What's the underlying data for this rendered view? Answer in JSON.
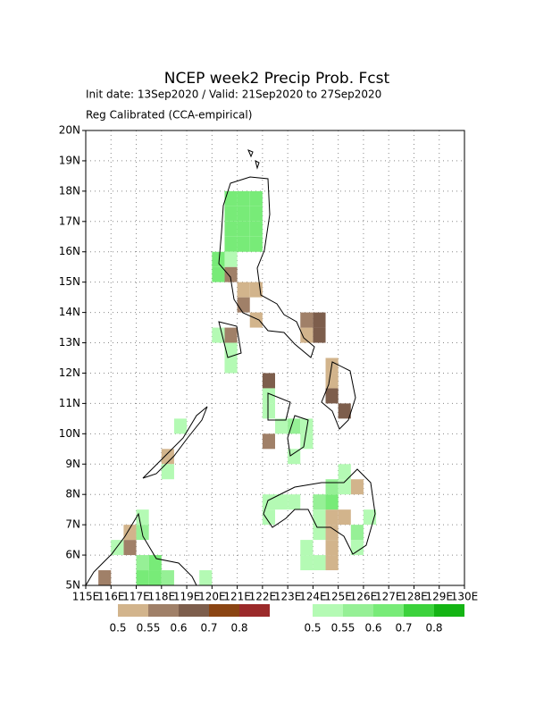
{
  "chart_data": {
    "type": "map",
    "title": "NCEP week2 Precip Prob. Fcst",
    "subtitle": [
      "Init date: 13Sep2020 / Valid: 21Sep2020 to 27Sep2020",
      "Reg Calibrated (CCA-empirical)"
    ],
    "xlim": [
      115,
      130
    ],
    "ylim": [
      5,
      20
    ],
    "xticks": [
      {
        "value": 115,
        "label": "115E"
      },
      {
        "value": 116,
        "label": "116E"
      },
      {
        "value": 117,
        "label": "117E"
      },
      {
        "value": 118,
        "label": "118E"
      },
      {
        "value": 119,
        "label": "119E"
      },
      {
        "value": 120,
        "label": "120E"
      },
      {
        "value": 121,
        "label": "121E"
      },
      {
        "value": 122,
        "label": "122E"
      },
      {
        "value": 123,
        "label": "123E"
      },
      {
        "value": 124,
        "label": "124E"
      },
      {
        "value": 125,
        "label": "125E"
      },
      {
        "value": 126,
        "label": "126E"
      },
      {
        "value": 127,
        "label": "127E"
      },
      {
        "value": 128,
        "label": "128E"
      },
      {
        "value": 129,
        "label": "129E"
      },
      {
        "value": 130,
        "label": "130E"
      }
    ],
    "yticks": [
      {
        "value": 5,
        "label": "5N"
      },
      {
        "value": 6,
        "label": "6N"
      },
      {
        "value": 7,
        "label": "7N"
      },
      {
        "value": 8,
        "label": "8N"
      },
      {
        "value": 9,
        "label": "9N"
      },
      {
        "value": 10,
        "label": "10N"
      },
      {
        "value": 11,
        "label": "11N"
      },
      {
        "value": 12,
        "label": "12N"
      },
      {
        "value": 13,
        "label": "13N"
      },
      {
        "value": 14,
        "label": "14N"
      },
      {
        "value": 15,
        "label": "15N"
      },
      {
        "value": 16,
        "label": "16N"
      },
      {
        "value": 17,
        "label": "17N"
      },
      {
        "value": 18,
        "label": "18N"
      },
      {
        "value": 19,
        "label": "19N"
      },
      {
        "value": 20,
        "label": "20N"
      }
    ],
    "grid": true,
    "series": [
      {
        "levels": [
          0.5,
          0.55,
          0.6,
          0.7,
          0.8
        ],
        "colors": [
          "#d2b48c",
          "#a08068",
          "#7d5e4c",
          "#8b4513",
          "#9b2a2a"
        ],
        "cells": [
          {
            "lon": 120.5,
            "lat": 15,
            "prob": 0.55
          },
          {
            "lon": 121,
            "lat": 14,
            "prob": 0.55
          },
          {
            "lon": 120.5,
            "lat": 13,
            "prob": 0.55
          },
          {
            "lon": 121,
            "lat": 14.5,
            "prob": 0.5
          },
          {
            "lon": 121.5,
            "lat": 13.5,
            "prob": 0.5
          },
          {
            "lon": 121.5,
            "lat": 14.5,
            "prob": 0.5
          },
          {
            "lon": 124,
            "lat": 13,
            "prob": 0.6
          },
          {
            "lon": 124,
            "lat": 13.5,
            "prob": 0.6
          },
          {
            "lon": 123.5,
            "lat": 13,
            "prob": 0.5
          },
          {
            "lon": 123.5,
            "lat": 13.5,
            "prob": 0.55
          },
          {
            "lon": 124.5,
            "lat": 11,
            "prob": 0.6
          },
          {
            "lon": 124.5,
            "lat": 11.5,
            "prob": 0.5
          },
          {
            "lon": 125,
            "lat": 10.5,
            "prob": 0.6
          },
          {
            "lon": 124.5,
            "lat": 12,
            "prob": 0.5
          },
          {
            "lon": 122,
            "lat": 11.5,
            "prob": 0.6
          },
          {
            "lon": 122,
            "lat": 9.5,
            "prob": 0.55
          },
          {
            "lon": 118,
            "lat": 9,
            "prob": 0.5
          },
          {
            "lon": 115.5,
            "lat": 5,
            "prob": 0.55
          },
          {
            "lon": 116.5,
            "lat": 6,
            "prob": 0.55
          },
          {
            "lon": 116.5,
            "lat": 6.5,
            "prob": 0.5
          },
          {
            "lon": 124.5,
            "lat": 5.5,
            "prob": 0.5
          },
          {
            "lon": 124.5,
            "lat": 6,
            "prob": 0.5
          },
          {
            "lon": 124.5,
            "lat": 6.5,
            "prob": 0.5
          },
          {
            "lon": 124.5,
            "lat": 7,
            "prob": 0.5
          },
          {
            "lon": 125,
            "lat": 7,
            "prob": 0.5
          },
          {
            "lon": 125.5,
            "lat": 8,
            "prob": 0.5
          }
        ]
      },
      {
        "levels": [
          0.5,
          0.55,
          0.6,
          0.7,
          0.8
        ],
        "colors": [
          "#b4fab4",
          "#96f096",
          "#78eb78",
          "#3cd23c",
          "#14b414"
        ],
        "cells": [
          {
            "lon": 120.5,
            "lat": 16,
            "prob": 0.6
          },
          {
            "lon": 121,
            "lat": 16,
            "prob": 0.6
          },
          {
            "lon": 121.5,
            "lat": 16,
            "prob": 0.6
          },
          {
            "lon": 120.5,
            "lat": 16.5,
            "prob": 0.6
          },
          {
            "lon": 121,
            "lat": 16.5,
            "prob": 0.6
          },
          {
            "lon": 121.5,
            "lat": 16.5,
            "prob": 0.6
          },
          {
            "lon": 120.5,
            "lat": 17,
            "prob": 0.6
          },
          {
            "lon": 121,
            "lat": 17,
            "prob": 0.6
          },
          {
            "lon": 121.5,
            "lat": 17,
            "prob": 0.6
          },
          {
            "lon": 120.5,
            "lat": 17.5,
            "prob": 0.6
          },
          {
            "lon": 121,
            "lat": 17.5,
            "prob": 0.6
          },
          {
            "lon": 121.5,
            "lat": 17.5,
            "prob": 0.6
          },
          {
            "lon": 120,
            "lat": 15,
            "prob": 0.6
          },
          {
            "lon": 120,
            "lat": 15.5,
            "prob": 0.6
          },
          {
            "lon": 120.5,
            "lat": 15.5,
            "prob": 0.5
          },
          {
            "lon": 120,
            "lat": 13,
            "prob": 0.5
          },
          {
            "lon": 120.5,
            "lat": 12,
            "prob": 0.5
          },
          {
            "lon": 120.5,
            "lat": 12.5,
            "prob": 0.5
          },
          {
            "lon": 122,
            "lat": 10.5,
            "prob": 0.5
          },
          {
            "lon": 122,
            "lat": 11,
            "prob": 0.5
          },
          {
            "lon": 122.5,
            "lat": 10,
            "prob": 0.5
          },
          {
            "lon": 123,
            "lat": 10,
            "prob": 0.55
          },
          {
            "lon": 123,
            "lat": 9,
            "prob": 0.5
          },
          {
            "lon": 123.5,
            "lat": 10,
            "prob": 0.5
          },
          {
            "lon": 123.5,
            "lat": 9.5,
            "prob": 0.5
          },
          {
            "lon": 122,
            "lat": 7,
            "prob": 0.5
          },
          {
            "lon": 122,
            "lat": 7.5,
            "prob": 0.5
          },
          {
            "lon": 122.5,
            "lat": 7.5,
            "prob": 0.5
          },
          {
            "lon": 123,
            "lat": 7.5,
            "prob": 0.5
          },
          {
            "lon": 123.5,
            "lat": 5.5,
            "prob": 0.5
          },
          {
            "lon": 123.5,
            "lat": 6,
            "prob": 0.5
          },
          {
            "lon": 124,
            "lat": 5.5,
            "prob": 0.5
          },
          {
            "lon": 124,
            "lat": 6.5,
            "prob": 0.5
          },
          {
            "lon": 124,
            "lat": 7,
            "prob": 0.5
          },
          {
            "lon": 124,
            "lat": 7.5,
            "prob": 0.55
          },
          {
            "lon": 124.5,
            "lat": 7.5,
            "prob": 0.6
          },
          {
            "lon": 124.5,
            "lat": 8,
            "prob": 0.55
          },
          {
            "lon": 125,
            "lat": 8,
            "prob": 0.5
          },
          {
            "lon": 125,
            "lat": 8.5,
            "prob": 0.5
          },
          {
            "lon": 125.5,
            "lat": 6,
            "prob": 0.5
          },
          {
            "lon": 125.5,
            "lat": 6.5,
            "prob": 0.55
          },
          {
            "lon": 126,
            "lat": 7,
            "prob": 0.5
          },
          {
            "lon": 118,
            "lat": 8.5,
            "prob": 0.5
          },
          {
            "lon": 118.5,
            "lat": 10,
            "prob": 0.5
          },
          {
            "lon": 117,
            "lat": 5,
            "prob": 0.6
          },
          {
            "lon": 117.5,
            "lat": 5,
            "prob": 0.6
          },
          {
            "lon": 117,
            "lat": 5.5,
            "prob": 0.55
          },
          {
            "lon": 117.5,
            "lat": 5.5,
            "prob": 0.6
          },
          {
            "lon": 118,
            "lat": 5,
            "prob": 0.55
          },
          {
            "lon": 116,
            "lat": 6,
            "prob": 0.5
          },
          {
            "lon": 117,
            "lat": 6.5,
            "prob": 0.55
          },
          {
            "lon": 117,
            "lat": 7,
            "prob": 0.5
          },
          {
            "lon": 119.5,
            "lat": 5,
            "prob": 0.5
          }
        ]
      }
    ]
  }
}
